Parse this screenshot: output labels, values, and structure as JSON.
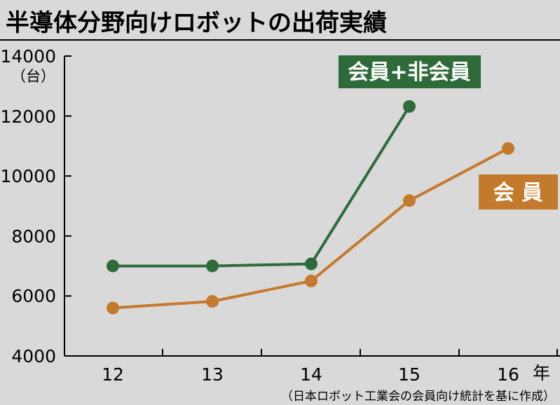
{
  "title": "半導体分野向けロボットの出荷実績",
  "source": "（日本ロボット工業会の会員向け統計を基に作成）",
  "chart_data": {
    "type": "line",
    "title": "半導体分野向けロボットの出荷実績",
    "ylabel": "（台）",
    "xlabel": "年",
    "x": [
      "12",
      "13",
      "14",
      "15",
      "16"
    ],
    "ylim": [
      4000,
      14000
    ],
    "yticks": [
      "14000",
      "12000",
      "10000",
      "8000",
      "6000",
      "4000"
    ],
    "grid": false,
    "series": [
      {
        "name": "会員+非会員",
        "color": "#2f6b3a",
        "values": [
          7000,
          7000,
          7070,
          12320,
          null
        ]
      },
      {
        "name": "会 員",
        "color": "#c47a2c",
        "values": [
          5600,
          5820,
          6500,
          9180,
          10920
        ]
      }
    ]
  }
}
